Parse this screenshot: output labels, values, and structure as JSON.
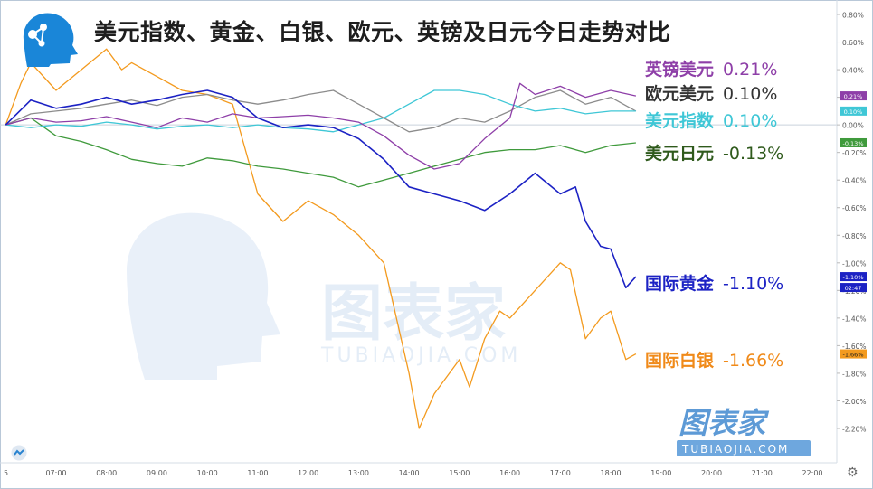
{
  "title": "美元指数、黄金、白银、欧元、英镑及日元今日走势对比",
  "watermark": {
    "main": "图表家",
    "sub": "TUBIAOJIA.COM"
  },
  "corner_brand": {
    "main": "图表家",
    "sub": "TUBIAOJIA.COM"
  },
  "chart_data": {
    "type": "line",
    "x_ticks": [
      "07:00",
      "08:00",
      "09:00",
      "10:00",
      "11:00",
      "12:00",
      "13:00",
      "14:00",
      "15:00",
      "16:00",
      "17:00",
      "18:00",
      "19:00",
      "20:00",
      "21:00",
      "22:00"
    ],
    "y_ticks": [
      "0.80%",
      "0.60%",
      "0.40%",
      "0.20%",
      "0.00%",
      "-0.20%",
      "-0.40%",
      "-0.60%",
      "-0.80%",
      "-1.00%",
      "-1.20%",
      "-1.40%",
      "-1.60%",
      "-1.80%",
      "-2.00%",
      "-2.20%"
    ],
    "y_tick_values": [
      0.8,
      0.6,
      0.4,
      0.2,
      0.0,
      -0.2,
      -0.4,
      -0.6,
      -0.8,
      -1.0,
      -1.2,
      -1.4,
      -1.6,
      -1.8,
      -2.0,
      -2.2
    ],
    "ylim": [
      -2.32,
      0.88
    ],
    "xlim": [
      6.0,
      22.0
    ],
    "first_x_label": "5",
    "time_badge": "02:47",
    "series": [
      {
        "name": "英镑美元",
        "pct": "0.21%",
        "badge": "0.21%",
        "color": "#8e3fa8",
        "label_color": "#8e3fa8",
        "x": [
          6.0,
          6.5,
          7.0,
          7.5,
          8.0,
          8.5,
          9.0,
          9.5,
          10.0,
          10.5,
          11.0,
          11.5,
          12.0,
          12.5,
          13.0,
          13.5,
          14.0,
          14.5,
          15.0,
          15.5,
          16.0,
          16.2,
          16.5,
          17.0,
          17.5,
          18.0,
          18.5
        ],
        "y": [
          0.0,
          0.05,
          0.02,
          0.03,
          0.06,
          0.02,
          -0.02,
          0.05,
          0.02,
          0.08,
          0.05,
          0.06,
          0.07,
          0.05,
          0.02,
          -0.08,
          -0.22,
          -0.32,
          -0.28,
          -0.1,
          0.05,
          0.3,
          0.22,
          0.28,
          0.2,
          0.25,
          0.21
        ]
      },
      {
        "name": "欧元美元",
        "pct": "0.10%",
        "badge": "",
        "color": "#8c8c8c",
        "label_color": "#333333",
        "x": [
          6.0,
          6.5,
          7.0,
          7.5,
          8.0,
          8.5,
          9.0,
          9.5,
          10.0,
          10.5,
          11.0,
          11.5,
          12.0,
          12.5,
          13.0,
          13.5,
          14.0,
          14.5,
          15.0,
          15.5,
          16.0,
          16.5,
          17.0,
          17.5,
          18.0,
          18.5
        ],
        "y": [
          0.0,
          0.08,
          0.1,
          0.12,
          0.15,
          0.18,
          0.14,
          0.2,
          0.22,
          0.18,
          0.15,
          0.18,
          0.22,
          0.25,
          0.15,
          0.05,
          -0.05,
          -0.02,
          0.05,
          0.02,
          0.1,
          0.2,
          0.25,
          0.15,
          0.2,
          0.1
        ]
      },
      {
        "name": "美元指数",
        "pct": "0.10%",
        "badge": "0.10%",
        "color": "#3fc7d6",
        "label_color": "#3fc7d6",
        "x": [
          6.0,
          6.5,
          7.0,
          7.5,
          8.0,
          8.5,
          9.0,
          9.5,
          10.0,
          10.5,
          11.0,
          11.5,
          12.0,
          12.5,
          13.0,
          13.5,
          14.0,
          14.5,
          15.0,
          15.5,
          16.0,
          16.5,
          17.0,
          17.5,
          18.0,
          18.5
        ],
        "y": [
          0.0,
          -0.02,
          0.0,
          -0.01,
          0.02,
          0.0,
          -0.03,
          -0.01,
          0.0,
          -0.02,
          0.0,
          -0.02,
          -0.03,
          -0.05,
          0.0,
          0.05,
          0.15,
          0.25,
          0.25,
          0.22,
          0.15,
          0.1,
          0.12,
          0.08,
          0.1,
          0.1
        ]
      },
      {
        "name": "美元日元",
        "pct": "-0.13%",
        "badge": "-0.13%",
        "color": "#3f9a3c",
        "label_color": "#2f5a1c",
        "x": [
          6.0,
          6.5,
          7.0,
          7.5,
          8.0,
          8.5,
          9.0,
          9.5,
          10.0,
          10.5,
          11.0,
          11.5,
          12.0,
          12.5,
          13.0,
          13.5,
          14.0,
          14.5,
          15.0,
          15.5,
          16.0,
          16.5,
          17.0,
          17.5,
          18.0,
          18.5
        ],
        "y": [
          0.0,
          0.05,
          -0.08,
          -0.12,
          -0.18,
          -0.25,
          -0.28,
          -0.3,
          -0.24,
          -0.26,
          -0.3,
          -0.32,
          -0.35,
          -0.38,
          -0.45,
          -0.4,
          -0.35,
          -0.3,
          -0.25,
          -0.2,
          -0.18,
          -0.18,
          -0.15,
          -0.2,
          -0.15,
          -0.13
        ]
      },
      {
        "name": "国际黄金",
        "pct": "-1.10%",
        "badge": "-1.10%",
        "color": "#1c22c4",
        "label_color": "#1c22c4",
        "x": [
          6.0,
          6.5,
          7.0,
          7.5,
          8.0,
          8.5,
          9.0,
          9.5,
          10.0,
          10.5,
          11.0,
          11.5,
          12.0,
          12.5,
          13.0,
          13.5,
          14.0,
          14.5,
          15.0,
          15.5,
          16.0,
          16.5,
          17.0,
          17.3,
          17.5,
          17.8,
          18.0,
          18.3,
          18.5
        ],
        "y": [
          0.0,
          0.18,
          0.12,
          0.15,
          0.2,
          0.15,
          0.18,
          0.22,
          0.25,
          0.2,
          0.05,
          -0.02,
          0.0,
          -0.02,
          -0.1,
          -0.25,
          -0.45,
          -0.5,
          -0.55,
          -0.62,
          -0.5,
          -0.35,
          -0.5,
          -0.45,
          -0.7,
          -0.88,
          -0.9,
          -1.18,
          -1.1
        ]
      },
      {
        "name": "国际白银",
        "pct": "-1.66%",
        "badge": "-1.66%",
        "color": "#f39a1e",
        "label_color": "#f08a19",
        "x": [
          6.0,
          6.3,
          6.5,
          7.0,
          7.5,
          8.0,
          8.3,
          8.5,
          9.0,
          9.5,
          10.0,
          10.5,
          11.0,
          11.5,
          12.0,
          12.5,
          13.0,
          13.5,
          14.0,
          14.2,
          14.5,
          15.0,
          15.2,
          15.5,
          15.8,
          16.0,
          16.5,
          17.0,
          17.2,
          17.5,
          17.8,
          18.0,
          18.3,
          18.5
        ],
        "y": [
          0.0,
          0.3,
          0.45,
          0.25,
          0.4,
          0.55,
          0.4,
          0.45,
          0.35,
          0.25,
          0.22,
          0.15,
          -0.5,
          -0.7,
          -0.55,
          -0.65,
          -0.8,
          -1.0,
          -1.8,
          -2.2,
          -1.95,
          -1.7,
          -1.9,
          -1.55,
          -1.35,
          -1.4,
          -1.2,
          -1.0,
          -1.05,
          -1.55,
          -1.4,
          -1.35,
          -1.7,
          -1.66
        ]
      }
    ]
  }
}
